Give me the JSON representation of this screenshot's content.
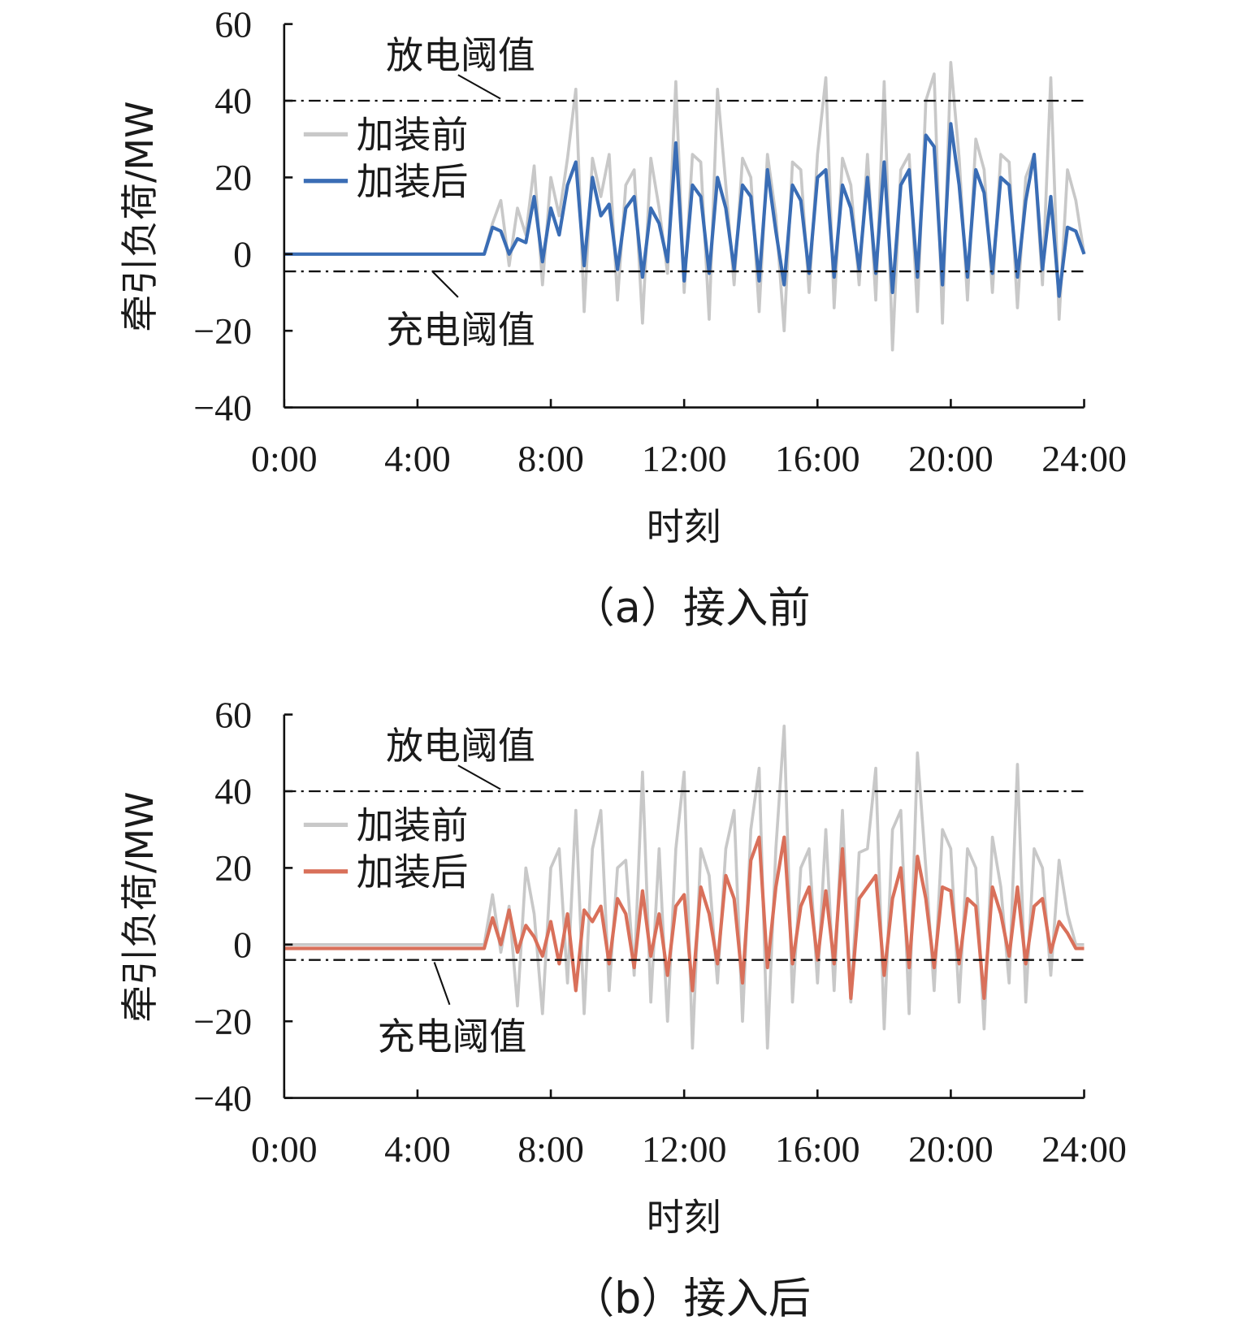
{
  "chart_data": [
    {
      "type": "line",
      "caption": "（a）接入前",
      "xlabel": "时刻",
      "ylabel": "牵引负荷/MW",
      "ylim": [
        -40,
        60
      ],
      "yticks": [
        "60",
        "40",
        "20",
        "0",
        "−20",
        "−40"
      ],
      "ytick_values": [
        60,
        40,
        20,
        0,
        -20,
        -40
      ],
      "xticks": [
        "0:00",
        "4:00",
        "8:00",
        "12:00",
        "16:00",
        "20:00",
        "24:00"
      ],
      "thresholds": [
        {
          "label": "放电阈值",
          "value": 40
        },
        {
          "label": "充电阈值",
          "value": -4.5
        }
      ],
      "legend_position": "top-left",
      "series": [
        {
          "name": "加装前",
          "color": "#c8c8c8",
          "values": [
            0,
            0,
            0,
            0,
            0,
            0,
            0,
            0,
            0,
            0,
            0,
            0,
            0,
            0,
            0,
            0,
            0,
            0,
            0,
            0,
            0,
            0,
            0,
            0,
            0,
            8,
            14,
            -3,
            12,
            5,
            23,
            -8,
            20,
            10,
            25,
            43,
            -15,
            25,
            15,
            26,
            -12,
            18,
            22,
            -18,
            25,
            12,
            -5,
            45,
            -10,
            26,
            24,
            -17,
            43,
            18,
            -8,
            25,
            20,
            -15,
            26,
            10,
            -20,
            24,
            22,
            -10,
            26,
            46,
            -14,
            25,
            18,
            -8,
            26,
            -12,
            45,
            -25,
            22,
            26,
            -15,
            40,
            47,
            -18,
            50,
            25,
            -12,
            30,
            22,
            -10,
            26,
            24,
            -14,
            20,
            26,
            -8,
            46,
            -17,
            22,
            14,
            0
          ]
        },
        {
          "name": "加装后",
          "color": "#3a6db5",
          "values": [
            0,
            0,
            0,
            0,
            0,
            0,
            0,
            0,
            0,
            0,
            0,
            0,
            0,
            0,
            0,
            0,
            0,
            0,
            0,
            0,
            0,
            0,
            0,
            0,
            0,
            7,
            6,
            0,
            4,
            3,
            15,
            -2,
            12,
            5,
            18,
            24,
            -3,
            20,
            10,
            13,
            -4,
            12,
            15,
            -6,
            12,
            8,
            -2,
            29,
            -7,
            18,
            15,
            -5,
            20,
            12,
            -4,
            18,
            15,
            -7,
            22,
            6,
            -8,
            18,
            14,
            -5,
            20,
            22,
            -6,
            18,
            12,
            -4,
            20,
            -5,
            24,
            -10,
            18,
            22,
            -6,
            31,
            28,
            -8,
            34,
            18,
            -6,
            22,
            16,
            -5,
            20,
            18,
            -6,
            14,
            26,
            -4,
            15,
            -11,
            7,
            6,
            0
          ]
        }
      ]
    },
    {
      "type": "line",
      "caption": "（b）接入后",
      "xlabel": "时刻",
      "ylabel": "牵引负荷/MW",
      "ylim": [
        -40,
        60
      ],
      "yticks": [
        "60",
        "40",
        "20",
        "0",
        "−20",
        "−40"
      ],
      "ytick_values": [
        60,
        40,
        20,
        0,
        -20,
        -40
      ],
      "xticks": [
        "0:00",
        "4:00",
        "8:00",
        "12:00",
        "16:00",
        "20:00",
        "24:00"
      ],
      "thresholds": [
        {
          "label": "放电阈值",
          "value": 40
        },
        {
          "label": "充电阈值",
          "value": -4
        }
      ],
      "legend_position": "top-left",
      "series": [
        {
          "name": "加装前",
          "color": "#c8c8c8",
          "values": [
            0,
            0,
            0,
            0,
            0,
            0,
            0,
            0,
            0,
            0,
            0,
            0,
            0,
            0,
            0,
            0,
            0,
            0,
            0,
            0,
            0,
            0,
            0,
            0,
            0,
            13,
            -2,
            10,
            -16,
            20,
            8,
            -18,
            20,
            25,
            -10,
            35,
            -18,
            25,
            35,
            -12,
            20,
            22,
            -8,
            45,
            -15,
            25,
            -20,
            25,
            45,
            -27,
            25,
            18,
            -10,
            25,
            35,
            -20,
            30,
            46,
            -27,
            25,
            57,
            -15,
            20,
            25,
            -10,
            30,
            -12,
            35,
            -15,
            24,
            25,
            46,
            -22,
            30,
            35,
            -18,
            50,
            20,
            -12,
            30,
            25,
            -15,
            25,
            20,
            -22,
            28,
            15,
            -10,
            47,
            -15,
            25,
            20,
            -8,
            22,
            8,
            0,
            0
          ]
        },
        {
          "name": "加装后",
          "color": "#d9705a",
          "values": [
            -1,
            -1,
            -1,
            -1,
            -1,
            -1,
            -1,
            -1,
            -1,
            -1,
            -1,
            -1,
            -1,
            -1,
            -1,
            -1,
            -1,
            -1,
            -1,
            -1,
            -1,
            -1,
            -1,
            -1,
            -1,
            7,
            0,
            9,
            -2,
            5,
            2,
            -3,
            6,
            -5,
            8,
            -12,
            9,
            6,
            10,
            -5,
            12,
            8,
            -6,
            14,
            -3,
            8,
            -8,
            10,
            13,
            -12,
            15,
            8,
            -5,
            18,
            12,
            -10,
            22,
            28,
            -6,
            15,
            28,
            -5,
            10,
            15,
            -4,
            14,
            -5,
            25,
            -14,
            12,
            15,
            18,
            -8,
            12,
            20,
            -6,
            23,
            12,
            -6,
            15,
            14,
            -5,
            12,
            10,
            -14,
            15,
            8,
            -3,
            15,
            -5,
            10,
            12,
            -2,
            6,
            3,
            -1,
            -1
          ]
        }
      ]
    }
  ]
}
